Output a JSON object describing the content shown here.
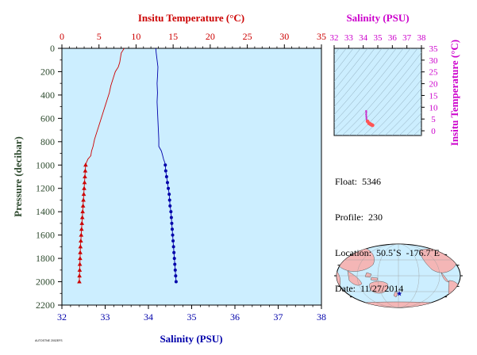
{
  "colors": {
    "temperature": "#cc0000",
    "salinity": "#0000aa",
    "salinity_axis": "#cc00cc",
    "pressure_axis": "#2e4a2e",
    "plot_bg": "#cceeff",
    "land": "#f4b6b6",
    "ocean": "#cceeff"
  },
  "chart_data": [
    {
      "type": "line",
      "title": "",
      "top_axis": {
        "label": "Insitu Temperature (°C)",
        "range": [
          0,
          35
        ],
        "ticks": [
          0,
          5,
          10,
          15,
          20,
          25,
          30,
          35
        ]
      },
      "bottom_axis": {
        "label": "Salinity (PSU)",
        "range": [
          32,
          38
        ],
        "ticks": [
          32,
          33,
          34,
          35,
          36,
          37,
          38
        ]
      },
      "y_axis": {
        "label": "Pressure (decibar)",
        "range": [
          0,
          2200
        ],
        "inverted": true,
        "ticks": [
          0,
          200,
          400,
          600,
          800,
          1000,
          1200,
          1400,
          1600,
          1800,
          2000,
          2200
        ]
      },
      "series": [
        {
          "name": "Insitu Temperature",
          "axis": "top",
          "marker": "triangle",
          "points": [
            [
              8.4,
              0
            ],
            [
              8.2,
              20
            ],
            [
              8.0,
              40
            ],
            [
              7.9,
              80
            ],
            [
              7.8,
              120
            ],
            [
              7.6,
              160
            ],
            [
              7.2,
              200
            ],
            [
              6.9,
              260
            ],
            [
              6.6,
              320
            ],
            [
              6.4,
              380
            ],
            [
              6.2,
              420
            ],
            [
              5.9,
              480
            ],
            [
              5.6,
              540
            ],
            [
              5.3,
              600
            ],
            [
              5.0,
              660
            ],
            [
              4.7,
              720
            ],
            [
              4.4,
              780
            ],
            [
              4.2,
              840
            ],
            [
              4.0,
              880
            ],
            [
              3.9,
              920
            ],
            [
              3.5,
              950
            ],
            [
              3.3,
              980
            ],
            [
              3.2,
              1000
            ],
            [
              3.15,
              1050
            ],
            [
              3.1,
              1100
            ],
            [
              3.05,
              1150
            ],
            [
              3.0,
              1200
            ],
            [
              2.95,
              1250
            ],
            [
              2.9,
              1300
            ],
            [
              2.85,
              1350
            ],
            [
              2.8,
              1400
            ],
            [
              2.75,
              1450
            ],
            [
              2.7,
              1500
            ],
            [
              2.65,
              1550
            ],
            [
              2.6,
              1600
            ],
            [
              2.55,
              1650
            ],
            [
              2.5,
              1700
            ],
            [
              2.47,
              1750
            ],
            [
              2.45,
              1800
            ],
            [
              2.42,
              1850
            ],
            [
              2.4,
              1900
            ],
            [
              2.37,
              1950
            ],
            [
              2.35,
              2000
            ]
          ]
        },
        {
          "name": "Salinity",
          "axis": "bottom",
          "marker": "circle",
          "points": [
            [
              34.17,
              0
            ],
            [
              34.18,
              40
            ],
            [
              34.2,
              100
            ],
            [
              34.22,
              160
            ],
            [
              34.21,
              240
            ],
            [
              34.2,
              300
            ],
            [
              34.21,
              380
            ],
            [
              34.2,
              460
            ],
            [
              34.21,
              540
            ],
            [
              34.22,
              620
            ],
            [
              34.23,
              700
            ],
            [
              34.24,
              780
            ],
            [
              34.24,
              840
            ],
            [
              34.3,
              880
            ],
            [
              34.33,
              920
            ],
            [
              34.35,
              950
            ],
            [
              34.38,
              980
            ],
            [
              34.39,
              1000
            ],
            [
              34.4,
              1050
            ],
            [
              34.42,
              1100
            ],
            [
              34.44,
              1150
            ],
            [
              34.46,
              1200
            ],
            [
              34.48,
              1250
            ],
            [
              34.49,
              1300
            ],
            [
              34.5,
              1350
            ],
            [
              34.52,
              1400
            ],
            [
              34.53,
              1450
            ],
            [
              34.54,
              1500
            ],
            [
              34.55,
              1550
            ],
            [
              34.56,
              1600
            ],
            [
              34.57,
              1650
            ],
            [
              34.58,
              1700
            ],
            [
              34.59,
              1750
            ],
            [
              34.6,
              1800
            ],
            [
              34.61,
              1850
            ],
            [
              34.62,
              1900
            ],
            [
              34.63,
              1950
            ],
            [
              34.64,
              2000
            ]
          ]
        }
      ],
      "grid": false
    },
    {
      "type": "scatter",
      "title": "",
      "x_axis": {
        "label": "Salinity (PSU)",
        "position": "top",
        "range": [
          32,
          38
        ],
        "ticks": [
          32,
          33,
          34,
          35,
          36,
          37,
          38
        ]
      },
      "y_axis": {
        "label": "Insitu Temperature (°C)",
        "position": "right",
        "range": [
          -2,
          35
        ],
        "ticks": [
          0,
          5,
          10,
          15,
          20,
          25,
          30,
          35
        ]
      },
      "background": "density-contours",
      "series": [
        {
          "name": "T-S",
          "points": [
            [
              34.2,
              8.4
            ],
            [
              34.21,
              7.8
            ],
            [
              34.2,
              7.0
            ],
            [
              34.21,
              6.2
            ],
            [
              34.22,
              5.4
            ],
            [
              34.24,
              4.6
            ],
            [
              34.3,
              4.0
            ],
            [
              34.39,
              3.2
            ],
            [
              34.45,
              3.0
            ],
            [
              34.5,
              2.8
            ],
            [
              34.55,
              2.6
            ],
            [
              34.6,
              2.45
            ],
            [
              34.64,
              2.35
            ]
          ]
        }
      ]
    }
  ],
  "info": {
    "float_label": "Float:",
    "float_value": "5346",
    "profile_label": "Profile:",
    "profile_value": "230",
    "location_label": "Location:",
    "location_value": "50.5˚S  -176.7˚E",
    "date_label": "Date:",
    "date_value": "11/27/2014"
  },
  "map": {
    "projection": "robinson",
    "float_position": {
      "lat": -50.5,
      "lon": -176.7
    },
    "marker": "star"
  },
  "footer": {
    "left_note": "AUTOSTNE 2002EFS"
  }
}
